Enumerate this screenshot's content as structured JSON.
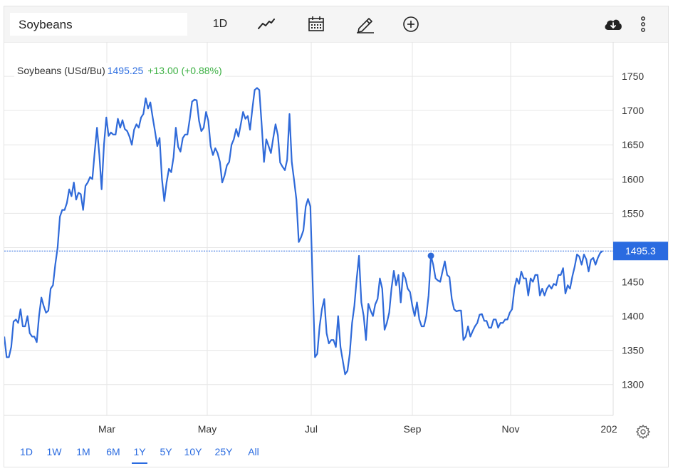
{
  "toolbar": {
    "symbol": "Soybeans",
    "interval_label": "1D",
    "icons": [
      "line-chart-icon",
      "calendar-icon",
      "pencil-icon",
      "add-circle-icon",
      "cloud-download-icon",
      "more-vertical-icon"
    ]
  },
  "legend": {
    "name": "Soybeans (USd/Bu)",
    "price": "1495.25",
    "change": "+13.00 (+0.88%)"
  },
  "range_buttons": [
    "1D",
    "1W",
    "1M",
    "6M",
    "1Y",
    "5Y",
    "10Y",
    "25Y",
    "All"
  ],
  "active_range": "1Y",
  "colors": {
    "line": "#2f6ad9",
    "last_price_badge": "#2a6be0",
    "change_positive": "#3cb043",
    "grid": "#e6e6e6"
  },
  "chart_data": {
    "type": "line",
    "title": "",
    "xlabel": "",
    "ylabel": "",
    "ylim": [
      1255,
      1800
    ],
    "y_ticks": [
      1300,
      1350,
      1400,
      1450,
      1500,
      1550,
      1600,
      1650,
      1700,
      1750
    ],
    "x_tick_labels": [
      "Mar",
      "May",
      "Jul",
      "Sep",
      "Nov",
      "202"
    ],
    "last_price_label": "1495.3",
    "grid": true,
    "axis_position": "right",
    "series": [
      {
        "values": [
          1370,
          1340,
          1340,
          1355,
          1392,
          1395,
          1390,
          1410,
          1385,
          1385,
          1400,
          1375,
          1370,
          1370,
          1362,
          1400,
          1427,
          1415,
          1405,
          1408,
          1440,
          1445,
          1475,
          1500,
          1545,
          1555,
          1555,
          1565,
          1585,
          1575,
          1595,
          1570,
          1580,
          1578,
          1555,
          1590,
          1595,
          1603,
          1600,
          1640,
          1675,
          1635,
          1585,
          1650,
          1690,
          1663,
          1668,
          1665,
          1665,
          1688,
          1675,
          1686,
          1673,
          1670,
          1662,
          1650,
          1672,
          1680,
          1675,
          1690,
          1695,
          1718,
          1703,
          1712,
          1690,
          1670,
          1648,
          1660,
          1600,
          1568,
          1595,
          1615,
          1610,
          1632,
          1675,
          1647,
          1640,
          1660,
          1665,
          1665,
          1688,
          1713,
          1716,
          1715,
          1685,
          1670,
          1675,
          1698,
          1685,
          1648,
          1635,
          1645,
          1638,
          1625,
          1595,
          1605,
          1620,
          1625,
          1650,
          1658,
          1673,
          1662,
          1680,
          1698,
          1688,
          1692,
          1672,
          1703,
          1730,
          1733,
          1730,
          1680,
          1625,
          1658,
          1648,
          1638,
          1660,
          1680,
          1664,
          1624,
          1618,
          1613,
          1628,
          1695,
          1625,
          1598,
          1570,
          1508,
          1515,
          1525,
          1560,
          1571,
          1560,
          1450,
          1340,
          1345,
          1385,
          1410,
          1425,
          1375,
          1360,
          1365,
          1365,
          1355,
          1400,
          1355,
          1335,
          1315,
          1320,
          1345,
          1390,
          1415,
          1455,
          1488,
          1420,
          1400,
          1365,
          1418,
          1408,
          1400,
          1417,
          1425,
          1455,
          1440,
          1380,
          1390,
          1405,
          1440,
          1466,
          1445,
          1460,
          1420,
          1463,
          1455,
          1440,
          1435,
          1415,
          1400,
          1420,
          1395,
          1385,
          1385,
          1400,
          1430,
          1488,
          1475,
          1455,
          1452,
          1450,
          1465,
          1480,
          1460,
          1457,
          1425,
          1410,
          1407,
          1408,
          1408,
          1365,
          1370,
          1385,
          1370,
          1378,
          1385,
          1390,
          1402,
          1403,
          1393,
          1393,
          1383,
          1383,
          1395,
          1395,
          1383,
          1390,
          1390,
          1395,
          1395,
          1405,
          1410,
          1440,
          1455,
          1447,
          1465,
          1455,
          1455,
          1430,
          1455,
          1450,
          1460,
          1460,
          1430,
          1440,
          1430,
          1440,
          1445,
          1440,
          1447,
          1445,
          1460,
          1460,
          1470,
          1433,
          1445,
          1440,
          1458,
          1472,
          1490,
          1487,
          1475,
          1490,
          1483,
          1465,
          1482,
          1485,
          1475,
          1485,
          1492,
          1495
        ]
      }
    ],
    "highlight_point_index": 184
  }
}
